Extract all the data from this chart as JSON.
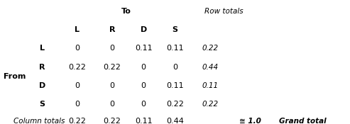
{
  "title_to": "To",
  "title_row_totals": "Row totals",
  "col_headers": [
    "L",
    "R",
    "D",
    "S"
  ],
  "row_headers": [
    "L",
    "R",
    "D",
    "S"
  ],
  "from_label": "From",
  "matrix": [
    [
      "0",
      "0",
      "0.11",
      "0.11"
    ],
    [
      "0.22",
      "0.22",
      "0",
      "0"
    ],
    [
      "0",
      "0",
      "0",
      "0.11"
    ],
    [
      "0",
      "0",
      "0",
      "0.22"
    ]
  ],
  "row_totals": [
    "0.22",
    "0.44",
    "0.11",
    "0.22"
  ],
  "col_totals_label": "Column totals",
  "col_totals": [
    "0.22",
    "0.22",
    "0.11",
    "0.44"
  ],
  "grand_total": "≅ 1.0",
  "grand_total_label": "Grand total",
  "fig_width": 4.93,
  "fig_height": 1.75,
  "dpi": 100,
  "fs_bold": 8,
  "fs_data": 8,
  "fs_italic": 7.5,
  "fs_header": 8
}
